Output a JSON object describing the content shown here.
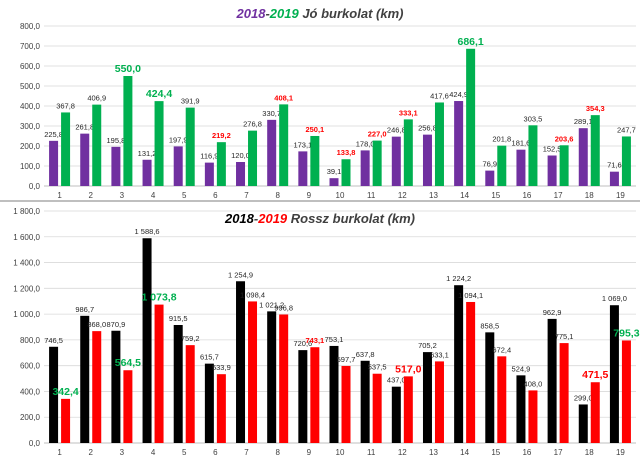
{
  "chart_data": [
    {
      "type": "bar",
      "title_parts": [
        {
          "text": "2018",
          "color": "#7030a0"
        },
        {
          "text": "-",
          "color": "#404040"
        },
        {
          "text": "2019",
          "color": "#00b050"
        },
        {
          "text": " Jó burkolat (km)",
          "color": "#404040"
        }
      ],
      "categories": [
        "1",
        "2",
        "3",
        "4",
        "5",
        "6",
        "7",
        "8",
        "9",
        "10",
        "11",
        "12",
        "13",
        "14",
        "15",
        "16",
        "17",
        "18",
        "19"
      ],
      "series": [
        {
          "color": "#7030a0",
          "values": [
            225.8,
            261.8,
            195.8,
            131.2,
            197.9,
            116.9,
            120.0,
            330.7,
            173.1,
            39.1,
            178.0,
            246.8,
            256.8,
            424.9,
            76.9,
            181.6,
            152.5,
            289.1,
            71.6
          ],
          "labels": [
            "225,8",
            "261,8",
            "195,8",
            "131,2",
            "197,9",
            "116,9",
            "120,0",
            "330,7",
            "173,1",
            "39,1",
            "178,0",
            "246,8",
            "256,8",
            "424,9",
            "76,9",
            "181,6",
            "152,5",
            "289,1",
            "71,6"
          ]
        },
        {
          "color": "#00b050",
          "values": [
            367.8,
            406.9,
            550.0,
            424.4,
            391.9,
            219.2,
            276.8,
            408.1,
            250.1,
            133.8,
            227.0,
            333.1,
            417.6,
            686.1,
            201.8,
            303.5,
            203.6,
            354.3,
            247.7
          ],
          "labels": [
            "367,8",
            "406,9",
            "550,0",
            "424,4",
            "391,9",
            "219,2",
            "276,8",
            "408,1",
            "250,1",
            "133,8",
            "227,0",
            "333,1",
            "417,6",
            "686,1",
            "201,8",
            "303,5",
            "203,6",
            "354,3",
            "247,7"
          ]
        }
      ],
      "highlighted_labels": [
        {
          "series": 1,
          "index": 2,
          "color": "#00b050",
          "size": "large"
        },
        {
          "series": 1,
          "index": 3,
          "color": "#00b050",
          "size": "large"
        },
        {
          "series": 1,
          "index": 13,
          "color": "#00b050",
          "size": "large"
        },
        {
          "series": 1,
          "index": 5,
          "color": "#ff0000",
          "size": "small"
        },
        {
          "series": 1,
          "index": 7,
          "color": "#ff0000",
          "size": "small"
        },
        {
          "series": 1,
          "index": 8,
          "color": "#ff0000",
          "size": "small"
        },
        {
          "series": 1,
          "index": 9,
          "color": "#ff0000",
          "size": "small"
        },
        {
          "series": 1,
          "index": 10,
          "color": "#ff0000",
          "size": "small"
        },
        {
          "series": 1,
          "index": 11,
          "color": "#ff0000",
          "size": "small"
        },
        {
          "series": 1,
          "index": 16,
          "color": "#ff0000",
          "size": "small"
        },
        {
          "series": 1,
          "index": 17,
          "color": "#ff0000",
          "size": "small"
        }
      ],
      "ylim": [
        0,
        800
      ],
      "yticks": [
        0,
        100,
        200,
        300,
        400,
        500,
        600,
        700,
        800
      ],
      "ytick_labels": [
        "0,0",
        "100,0",
        "200,0",
        "300,0",
        "400,0",
        "500,0",
        "600,0",
        "700,0",
        "800,0"
      ],
      "grid": true,
      "legend": "none"
    },
    {
      "type": "bar",
      "title_parts": [
        {
          "text": "2018",
          "color": "#000000"
        },
        {
          "text": "-",
          "color": "#404040"
        },
        {
          "text": "2019",
          "color": "#ff0000"
        },
        {
          "text": " Rossz burkolat (km)",
          "color": "#404040"
        }
      ],
      "categories": [
        "1",
        "2",
        "3",
        "4",
        "5",
        "6",
        "7",
        "8",
        "9",
        "10",
        "11",
        "12",
        "13",
        "14",
        "15",
        "16",
        "17",
        "18",
        "19"
      ],
      "series": [
        {
          "color": "#000000",
          "values": [
            746.5,
            986.7,
            870.9,
            1588.6,
            915.5,
            615.7,
            1254.9,
            1021.2,
            720.6,
            753.1,
            637.8,
            437.0,
            705.2,
            1224.2,
            858.5,
            524.9,
            962.9,
            299.0,
            1069.0
          ],
          "labels": [
            "746,5",
            "986,7",
            "870,9",
            "1 588,6",
            "915,5",
            "615,7",
            "1 254,9",
            "1 021,2",
            "720,6",
            "753,1",
            "637,8",
            "437,0",
            "705,2",
            "1 224,2",
            "858,5",
            "524,9",
            "962,9",
            "299,0",
            "1 069,0"
          ]
        },
        {
          "color": "#ff0000",
          "values": [
            342.4,
            868.0,
            564.5,
            1073.8,
            759.2,
            533.9,
            1098.4,
            996.8,
            743.1,
            597.7,
            537.5,
            517.0,
            633.1,
            1094.1,
            672.4,
            408.0,
            775.1,
            471.5,
            795.3
          ],
          "labels": [
            "342,4",
            "868,0",
            "564,5",
            "1 073,8",
            "759,2",
            "533,9",
            "1 098,4",
            "996,8",
            "743,1",
            "597,7",
            "537,5",
            "517,0",
            "633,1",
            "1 094,1",
            "672,4",
            "408,0",
            "775,1",
            "471,5",
            "795,3"
          ]
        }
      ],
      "highlighted_labels": [
        {
          "series": 1,
          "index": 0,
          "color": "#00b050",
          "size": "large"
        },
        {
          "series": 1,
          "index": 2,
          "color": "#00b050",
          "size": "large"
        },
        {
          "series": 1,
          "index": 3,
          "color": "#00b050",
          "size": "large"
        },
        {
          "series": 1,
          "index": 18,
          "color": "#00b050",
          "size": "large"
        },
        {
          "series": 1,
          "index": 11,
          "color": "#ff0000",
          "size": "large"
        },
        {
          "series": 1,
          "index": 17,
          "color": "#ff0000",
          "size": "large"
        },
        {
          "series": 1,
          "index": 8,
          "color": "#ff0000",
          "size": "small"
        }
      ],
      "ylim": [
        0,
        1800
      ],
      "yticks": [
        0,
        200,
        400,
        600,
        800,
        1000,
        1200,
        1400,
        1600,
        1800
      ],
      "ytick_labels": [
        "0,0",
        "200,0",
        "400,0",
        "600,0",
        "800,0",
        "1 000,0",
        "1 200,0",
        "1 400,0",
        "1 600,0",
        "1 800,0"
      ],
      "ytick_color": "#c00000",
      "grid": true,
      "legend": "none"
    }
  ]
}
